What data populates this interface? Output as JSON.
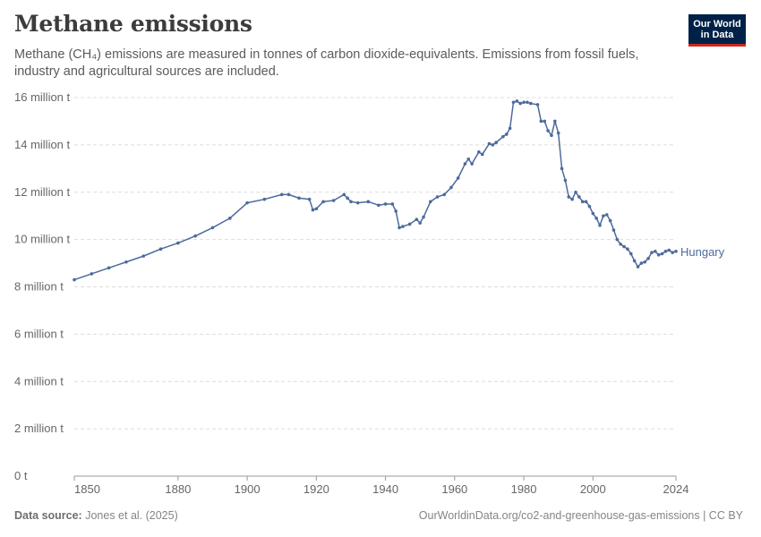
{
  "header": {
    "title": "Methane emissions",
    "subtitle": "Methane (CH₄) emissions are measured in tonnes of carbon dioxide-equivalents. Emissions from fossil fuels, industry and agricultural sources are included."
  },
  "logo": {
    "line1": "Our World",
    "line2": "in Data"
  },
  "footer": {
    "source_label": "Data source:",
    "source_text": "Jones et al. (2025)",
    "url_text": "OurWorldinData.org/co2-and-greenhouse-gas-emissions | CC BY"
  },
  "colors": {
    "series": "#4c6a9c",
    "grid": "#dddddd",
    "logo_bg": "#002147",
    "logo_accent": "#ce261e"
  },
  "chart_data": {
    "type": "line",
    "title": "Methane emissions",
    "xlabel": "",
    "ylabel": "",
    "xlim": [
      1850,
      2024
    ],
    "ylim": [
      0,
      16
    ],
    "x_ticks": [
      1850,
      1880,
      1900,
      1920,
      1940,
      1960,
      1980,
      2000,
      2024
    ],
    "y_ticks": [
      0,
      2,
      4,
      6,
      8,
      10,
      12,
      14,
      16
    ],
    "y_tick_labels": [
      "0 t",
      "2 million t",
      "4 million t",
      "6 million t",
      "8 million t",
      "10 million t",
      "12 million t",
      "14 million t",
      "16 million t"
    ],
    "grid": true,
    "y_unit": "million t",
    "series": [
      {
        "name": "Hungary",
        "x": [
          1850,
          1855,
          1860,
          1865,
          1870,
          1875,
          1880,
          1885,
          1890,
          1895,
          1900,
          1905,
          1910,
          1912,
          1915,
          1918,
          1919,
          1920,
          1922,
          1925,
          1928,
          1929,
          1930,
          1932,
          1935,
          1938,
          1940,
          1942,
          1943,
          1944,
          1945,
          1947,
          1949,
          1950,
          1951,
          1953,
          1955,
          1957,
          1959,
          1961,
          1963,
          1964,
          1965,
          1967,
          1968,
          1970,
          1971,
          1972,
          1974,
          1975,
          1976,
          1977,
          1978,
          1979,
          1980,
          1981,
          1982,
          1984,
          1985,
          1986,
          1987,
          1988,
          1989,
          1990,
          1991,
          1992,
          1993,
          1994,
          1995,
          1996,
          1997,
          1998,
          1999,
          2000,
          2001,
          2002,
          2003,
          2004,
          2005,
          2006,
          2007,
          2008,
          2009,
          2010,
          2011,
          2012,
          2013,
          2014,
          2015,
          2016,
          2017,
          2018,
          2019,
          2020,
          2021,
          2022,
          2023,
          2024
        ],
        "values": [
          8.3,
          8.55,
          8.8,
          9.05,
          9.3,
          9.6,
          9.85,
          10.15,
          10.5,
          10.9,
          11.55,
          11.7,
          11.9,
          11.9,
          11.75,
          11.7,
          11.25,
          11.3,
          11.6,
          11.65,
          11.9,
          11.75,
          11.6,
          11.55,
          11.6,
          11.45,
          11.5,
          11.5,
          11.2,
          10.5,
          10.55,
          10.65,
          10.85,
          10.7,
          10.95,
          11.6,
          11.8,
          11.9,
          12.2,
          12.6,
          13.2,
          13.4,
          13.2,
          13.7,
          13.6,
          14.05,
          14.0,
          14.1,
          14.35,
          14.45,
          14.7,
          15.8,
          15.85,
          15.75,
          15.8,
          15.8,
          15.75,
          15.7,
          15.0,
          15.0,
          14.6,
          14.4,
          15.0,
          14.5,
          13.0,
          12.5,
          11.8,
          11.7,
          12.0,
          11.8,
          11.6,
          11.6,
          11.4,
          11.1,
          10.9,
          10.6,
          11.0,
          11.05,
          10.8,
          10.4,
          10.0,
          9.8,
          9.7,
          9.6,
          9.4,
          9.1,
          8.85,
          9.0,
          9.05,
          9.2,
          9.45,
          9.5,
          9.35,
          9.4,
          9.5,
          9.55,
          9.45,
          9.5
        ]
      }
    ]
  }
}
